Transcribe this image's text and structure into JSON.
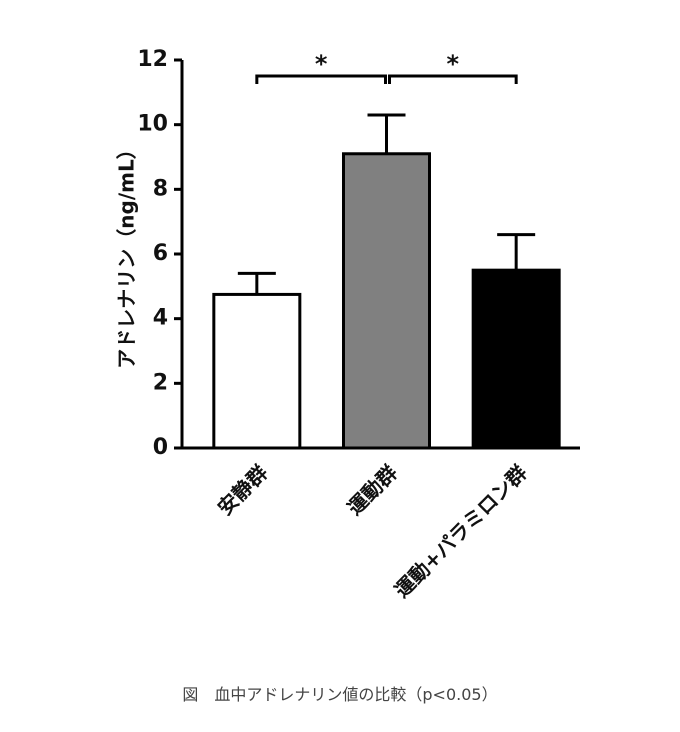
{
  "chart_data": {
    "type": "bar",
    "y_label": "アドレナリン（ng/mL）",
    "categories": [
      "安静群",
      "運動群",
      "運動+パラミロン群"
    ],
    "values": [
      4.75,
      9.1,
      5.5
    ],
    "errors": [
      0.65,
      1.2,
      1.1
    ],
    "colors": [
      "#ffffff",
      "#808080",
      "#000000"
    ],
    "ylim": [
      0,
      12
    ],
    "yticks": [
      0,
      2,
      4,
      6,
      8,
      10,
      12
    ],
    "significance": [
      {
        "from": 0,
        "to": 1,
        "label": "*"
      },
      {
        "from": 1,
        "to": 2,
        "label": "*"
      }
    ],
    "caption": "図　血中アドレナリン値の比較（p<0.05）"
  }
}
